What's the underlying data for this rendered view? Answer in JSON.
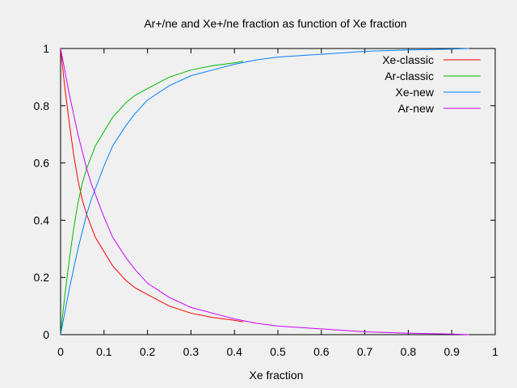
{
  "chart_data": {
    "type": "line",
    "title": "Ar+/ne and Xe+/ne fraction as function of Xe fraction",
    "xlabel": "Xe fraction",
    "ylabel": "",
    "xlim": [
      0,
      1
    ],
    "ylim": [
      0,
      1
    ],
    "x_ticks": [
      "0",
      "0.1",
      "0.2",
      "0.3",
      "0.4",
      "0.5",
      "0.6",
      "0.7",
      "0.8",
      "0.9",
      "1"
    ],
    "y_ticks": [
      "0",
      "0.2",
      "0.4",
      "0.6",
      "0.8",
      "1"
    ],
    "grid": false,
    "legend_position": "top-right",
    "series": [
      {
        "name": "Xe-classic",
        "color": "#ff0000",
        "x": [
          0,
          0.01,
          0.02,
          0.03,
          0.04,
          0.05,
          0.06,
          0.07,
          0.08,
          0.1,
          0.12,
          0.15,
          0.17,
          0.2,
          0.25,
          0.3,
          0.35,
          0.4,
          0.42
        ],
        "y": [
          1.0,
          0.86,
          0.74,
          0.63,
          0.54,
          0.47,
          0.42,
          0.38,
          0.34,
          0.29,
          0.24,
          0.19,
          0.165,
          0.14,
          0.1,
          0.075,
          0.06,
          0.05,
          0.045
        ]
      },
      {
        "name": "Ar-classic",
        "color": "#00bb00",
        "x": [
          0,
          0.01,
          0.02,
          0.03,
          0.04,
          0.05,
          0.06,
          0.07,
          0.08,
          0.1,
          0.12,
          0.15,
          0.17,
          0.2,
          0.25,
          0.3,
          0.35,
          0.4,
          0.42
        ],
        "y": [
          0.0,
          0.14,
          0.26,
          0.37,
          0.46,
          0.53,
          0.58,
          0.62,
          0.66,
          0.71,
          0.76,
          0.81,
          0.835,
          0.86,
          0.9,
          0.925,
          0.94,
          0.95,
          0.955
        ]
      },
      {
        "name": "Xe-new",
        "color": "#0080ff",
        "x": [
          0,
          0.01,
          0.02,
          0.03,
          0.04,
          0.05,
          0.06,
          0.07,
          0.08,
          0.1,
          0.12,
          0.15,
          0.17,
          0.2,
          0.25,
          0.3,
          0.35,
          0.4,
          0.45,
          0.5,
          0.6,
          0.7,
          0.8,
          0.9,
          0.94
        ],
        "y": [
          0.0,
          0.08,
          0.16,
          0.23,
          0.3,
          0.36,
          0.42,
          0.47,
          0.51,
          0.59,
          0.66,
          0.73,
          0.77,
          0.82,
          0.87,
          0.905,
          0.925,
          0.945,
          0.96,
          0.97,
          0.98,
          0.99,
          0.995,
          0.998,
          1.0
        ]
      },
      {
        "name": "Ar-new",
        "color": "#cc00ff",
        "x": [
          0,
          0.01,
          0.02,
          0.03,
          0.04,
          0.05,
          0.06,
          0.07,
          0.08,
          0.1,
          0.12,
          0.15,
          0.17,
          0.2,
          0.25,
          0.3,
          0.35,
          0.4,
          0.45,
          0.5,
          0.6,
          0.7,
          0.8,
          0.9,
          0.94
        ],
        "y": [
          1.0,
          0.92,
          0.84,
          0.77,
          0.7,
          0.64,
          0.58,
          0.53,
          0.49,
          0.41,
          0.34,
          0.27,
          0.23,
          0.18,
          0.13,
          0.095,
          0.075,
          0.055,
          0.04,
          0.03,
          0.02,
          0.01,
          0.005,
          0.002,
          0.0
        ]
      }
    ]
  }
}
